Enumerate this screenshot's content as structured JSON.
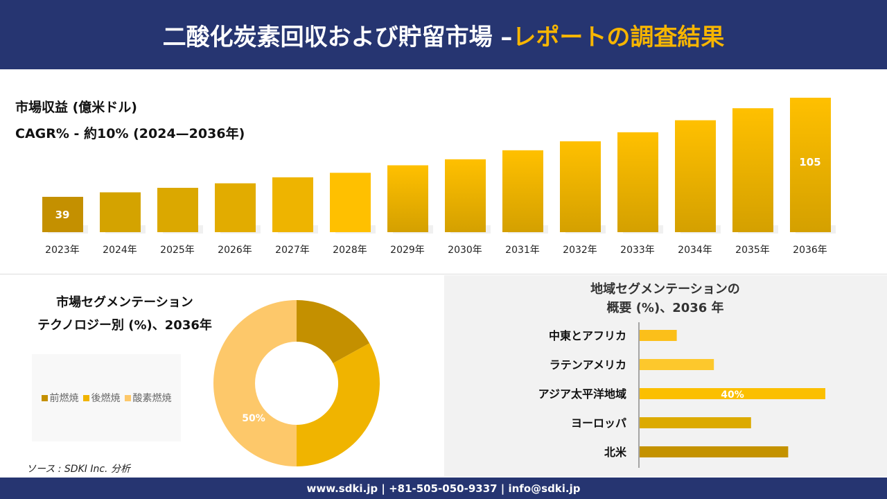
{
  "header": {
    "title_main": "二酸化炭素回収および貯留市場 –",
    "title_accent": "レポートの調査結果"
  },
  "colors": {
    "banner": "#263571",
    "accent": "#f7b500",
    "dark_gold": "#c49000",
    "gold": "#f0b400",
    "light_gold": "#fdc86a"
  },
  "chart_data": [
    {
      "type": "bar",
      "title": "市場収益 (億米ドル)",
      "subtitle": "CAGR% - 約10% (2024—2036年)",
      "categories": [
        "2023年",
        "2024年",
        "2025年",
        "2026年",
        "2027年",
        "2028年",
        "2029年",
        "2030年",
        "2031年",
        "2032年",
        "2033年",
        "2034年",
        "2035年",
        "2036年"
      ],
      "values": [
        39,
        42,
        45,
        48,
        52,
        55,
        60,
        64,
        70,
        76,
        82,
        90,
        98,
        105
      ],
      "data_labels": {
        "0": "39",
        "13": "105"
      },
      "grid": false
    },
    {
      "type": "pie",
      "variant": "donut",
      "title": "市場セグメンテーション テクノロジー別 (%)、2036年",
      "title_lines": [
        "市場セグメンテーション",
        "テクノロジー別 (%)、2036年"
      ],
      "categories": [
        "前燃焼",
        "後燃焼",
        "酸素燃焼"
      ],
      "values": [
        17,
        33,
        50
      ],
      "colors": [
        "#c49000",
        "#f0b400",
        "#fdc86a"
      ],
      "data_labels": {
        "2": "50%"
      },
      "legend": "left"
    },
    {
      "type": "bar",
      "orientation": "horizontal",
      "title_lines": [
        "地域セグメンテーションの",
        "概要 (%)、2036 年"
      ],
      "categories": [
        "中東とアフリカ",
        "ラテンアメリカ",
        "アジア太平洋地域",
        "ヨーロッパ",
        "北米"
      ],
      "values": [
        8,
        16,
        40,
        24,
        32
      ],
      "colors": [
        "#fbbf1a",
        "#fdc82c",
        "#fbbf00",
        "#dcaa00",
        "#c49200"
      ],
      "data_labels": {
        "2": "40%"
      }
    }
  ],
  "source": "ソース : SDKI Inc. 分析",
  "footer": "www.sdki.jp | +81-505-050-9337 | info@sdki.jp"
}
